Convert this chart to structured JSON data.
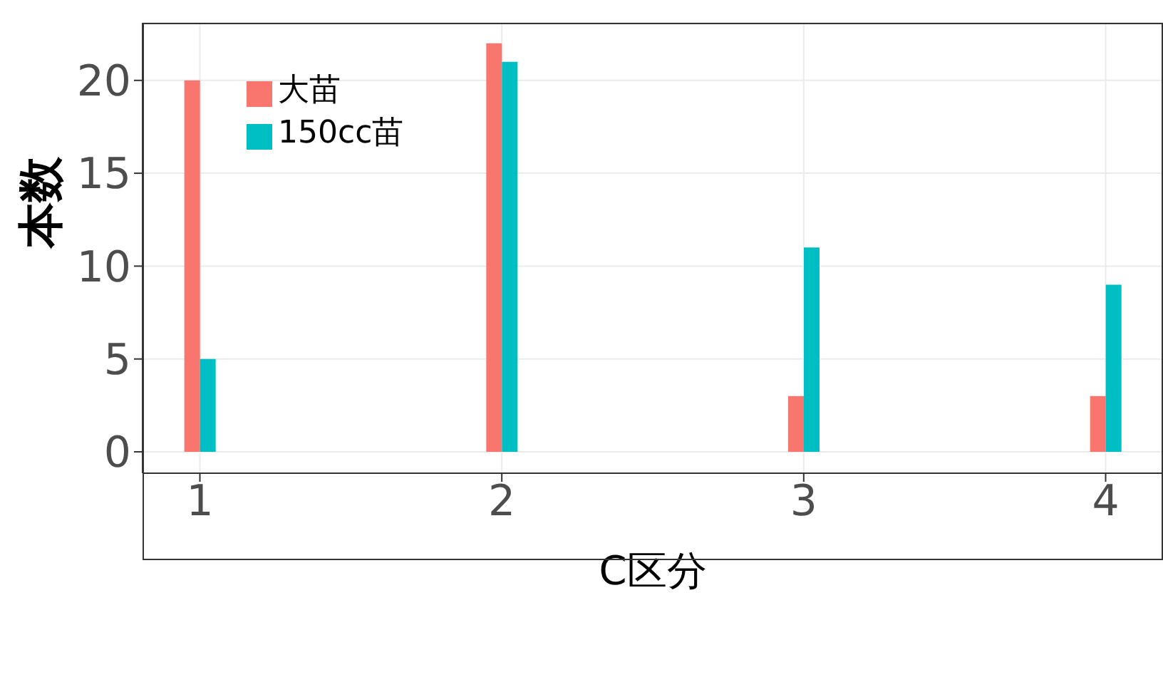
{
  "chart_data": {
    "type": "bar",
    "xlabel": "C区分",
    "ylabel": "本数",
    "x": [
      1,
      2,
      3,
      4
    ],
    "series": [
      {
        "name": "大苗",
        "color": "#f8766d",
        "values": [
          20,
          22,
          3,
          3
        ]
      },
      {
        "name": "150cc苗",
        "color": "#00bfc4",
        "values": [
          5,
          21,
          11,
          9
        ]
      }
    ],
    "xlim": [
      0.81,
      4.19
    ],
    "xticks": [
      1,
      2,
      3,
      4
    ],
    "ylim": [
      -1.15,
      23.1
    ],
    "yticks": [
      0,
      5,
      10,
      15,
      20
    ],
    "grid": true,
    "legend": "top left"
  }
}
